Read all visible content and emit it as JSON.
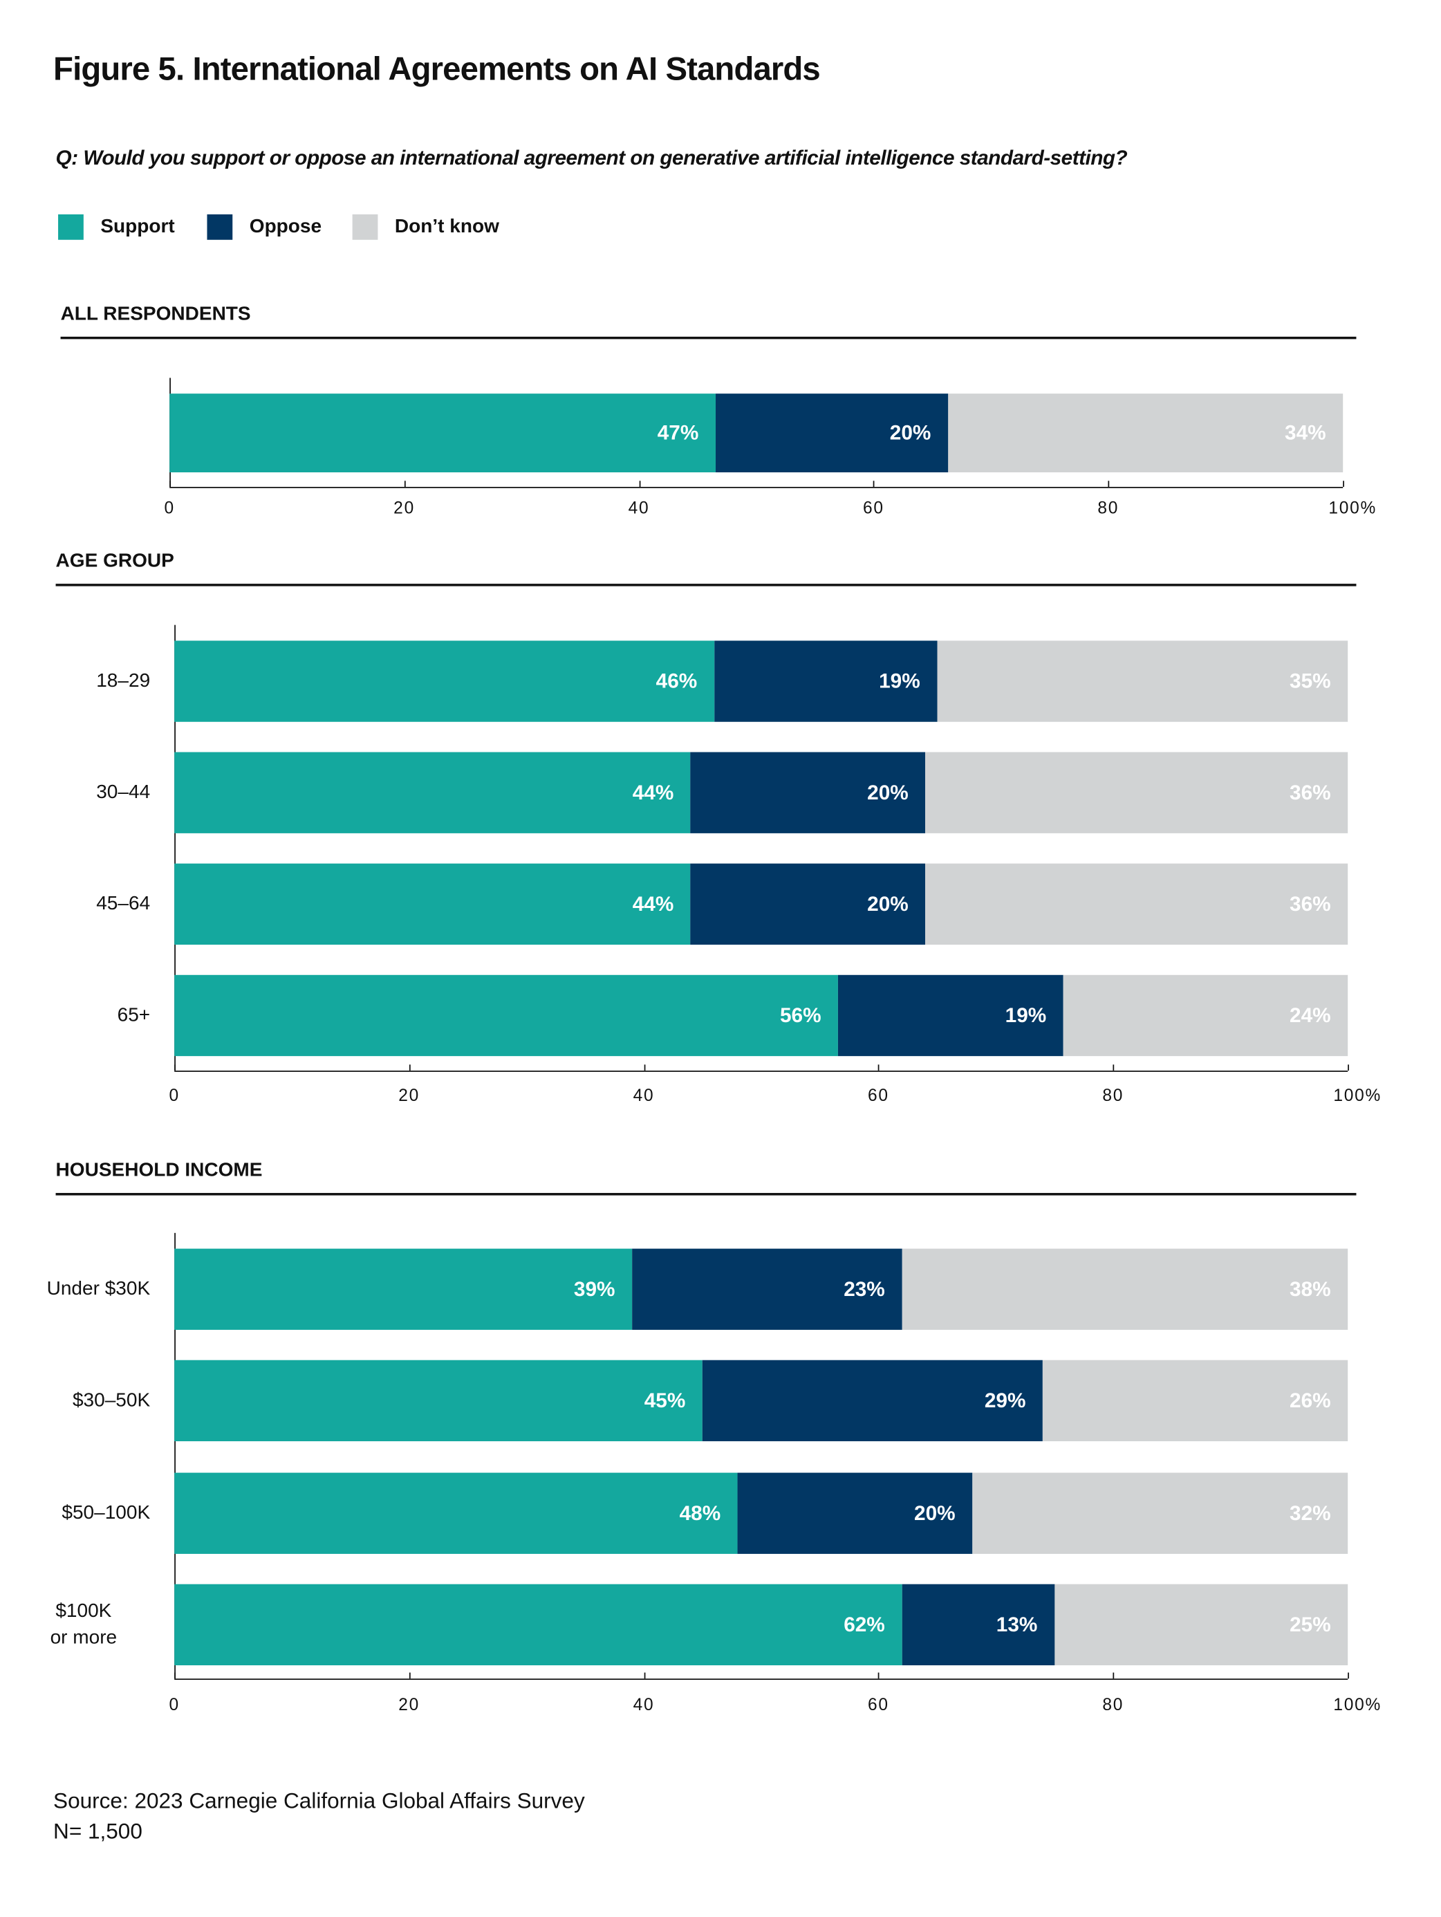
{
  "title": "Figure 5. International Agreements on AI Standards",
  "question": "Q: Would you support or oppose an international agreement on generative artificial intelligence standard-setting?",
  "legend": [
    {
      "label": "Support",
      "color": "#14a89e"
    },
    {
      "label": "Oppose",
      "color": "#023764"
    },
    {
      "label": "Don’t know",
      "color": "#d1d3d4"
    }
  ],
  "source": "Source: 2023 Carnegie California Global Affairs Survey",
  "n": "N= 1,500",
  "chart_data": [
    {
      "type": "bar",
      "orientation": "horizontal",
      "stacked": true,
      "title": "ALL RESPONDENTS",
      "categories": [
        ""
      ],
      "series": [
        {
          "name": "Support",
          "values": [
            47
          ]
        },
        {
          "name": "Oppose",
          "values": [
            20
          ]
        },
        {
          "name": "Don’t know",
          "values": [
            34
          ]
        }
      ],
      "labels": [
        [
          "47%",
          "20%",
          "34%"
        ]
      ],
      "xlim": [
        0,
        100
      ],
      "xticks": [
        "0",
        "20",
        "40",
        "60",
        "80",
        "100%"
      ]
    },
    {
      "type": "bar",
      "orientation": "horizontal",
      "stacked": true,
      "title": "AGE GROUP",
      "categories": [
        "18–29",
        "30–44",
        "45–64",
        "65+"
      ],
      "series": [
        {
          "name": "Support",
          "values": [
            46,
            44,
            44,
            56
          ]
        },
        {
          "name": "Oppose",
          "values": [
            19,
            20,
            20,
            19
          ]
        },
        {
          "name": "Don’t know",
          "values": [
            35,
            36,
            36,
            24
          ]
        }
      ],
      "labels": [
        [
          "46%",
          "19%",
          "35%"
        ],
        [
          "44%",
          "20%",
          "36%"
        ],
        [
          "44%",
          "20%",
          "36%"
        ],
        [
          "56%",
          "19%",
          "24%"
        ]
      ],
      "xlim": [
        0,
        100
      ],
      "xticks": [
        "0",
        "20",
        "40",
        "60",
        "80",
        "100%"
      ]
    },
    {
      "type": "bar",
      "orientation": "horizontal",
      "stacked": true,
      "title": "HOUSEHOLD INCOME",
      "categories": [
        "Under $30K",
        "$30–50K",
        "$50–100K",
        "$100K\nor more"
      ],
      "series": [
        {
          "name": "Support",
          "values": [
            39,
            45,
            48,
            62
          ]
        },
        {
          "name": "Oppose",
          "values": [
            23,
            29,
            20,
            13
          ]
        },
        {
          "name": "Don’t know",
          "values": [
            38,
            26,
            32,
            25
          ]
        }
      ],
      "labels": [
        [
          "39%",
          "23%",
          "38%"
        ],
        [
          "45%",
          "29%",
          "26%"
        ],
        [
          "48%",
          "20%",
          "32%"
        ],
        [
          "62%",
          "13%",
          "25%"
        ]
      ],
      "xlim": [
        0,
        100
      ],
      "xticks": [
        "0",
        "20",
        "40",
        "60",
        "80",
        "100%"
      ]
    }
  ]
}
